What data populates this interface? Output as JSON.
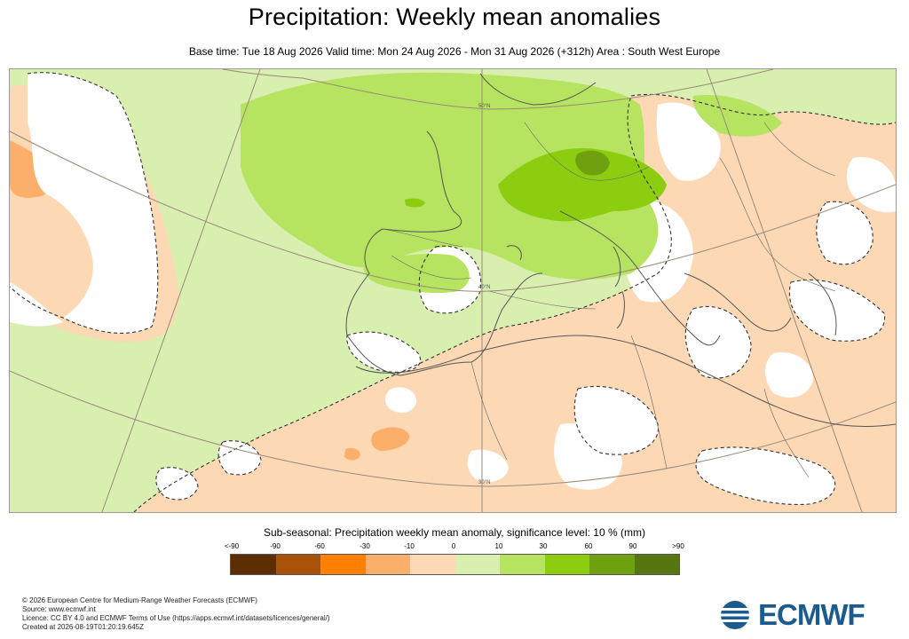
{
  "title": "Precipitation: Weekly mean anomalies",
  "subtitle": "Base time: Tue 18 Aug 2026 Valid time: Mon 24 Aug 2026 - Mon 31 Aug 2026 (+312h) Area : South West Europe",
  "map": {
    "area": "South West Europe",
    "gridline_labels": [
      "50°N",
      "40°N",
      "30°N"
    ],
    "colors": {
      "land_outline": "#555555",
      "significance_contour": "#333333",
      "graticule": "#9a8a7a"
    }
  },
  "legend": {
    "title": "Sub-seasonal: Precipitation weekly mean anomaly, significance level: 10 % (mm)",
    "ticks": [
      "<-90",
      "-90",
      "-60",
      "-30",
      "-10",
      "0",
      "10",
      "30",
      "60",
      "90",
      ">90"
    ],
    "colors": [
      "#5c2e00",
      "#a8520a",
      "#ff8000",
      "#fbaf6a",
      "#fdd8b4",
      "#d9efb0",
      "#b6e360",
      "#8ccd10",
      "#6ea010",
      "#577510"
    ]
  },
  "footer": [
    "© 2026 European Centre for Medium-Range Weather Forecasts (ECMWF)",
    "Source: www.ecmwf.int",
    "Licence: CC BY 4.0 and ECMWF Terms of Use (https://apps.ecmwf.int/datasets/licences/general/)",
    "Created at 2026-08-19T01:20:19.645Z"
  ],
  "logo": {
    "text": "ECMWF",
    "color": "#1c5b8d"
  }
}
